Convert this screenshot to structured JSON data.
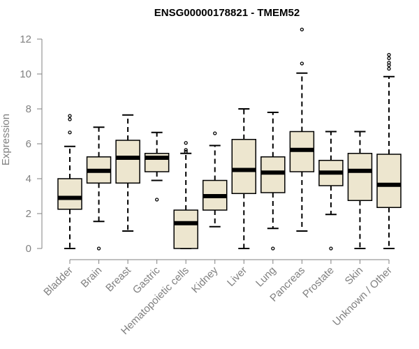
{
  "chart_data": {
    "type": "boxplot",
    "title": "ENSG00000178821 - TMEM52",
    "xlabel": "",
    "ylabel": "Expression",
    "ylim": [
      0,
      12.6
    ],
    "yticks": [
      0,
      2,
      4,
      6,
      8,
      10,
      12
    ],
    "grid": false,
    "legend": "none",
    "colors": {
      "box_fill": "#ede6cf",
      "stroke": "#000000",
      "axis": "#808080",
      "title": "#000000"
    },
    "categories": [
      "Bladder",
      "Brain",
      "Breast",
      "Gastric",
      "Hematopoietic cells",
      "Kidney",
      "Liver",
      "Lung",
      "Pancreas",
      "Prostate",
      "Skin",
      "Unknown / Other"
    ],
    "series": [
      {
        "name": "Bladder",
        "whisker_low": 0,
        "q1": 2.25,
        "median": 2.9,
        "q3": 4.0,
        "whisker_high": 5.85,
        "outliers": [
          6.65,
          7.4,
          7.6
        ]
      },
      {
        "name": "Brain",
        "whisker_low": 1.55,
        "q1": 3.75,
        "median": 4.45,
        "q3": 5.25,
        "whisker_high": 6.95,
        "outliers": [
          0
        ]
      },
      {
        "name": "Breast",
        "whisker_low": 1.0,
        "q1": 3.75,
        "median": 5.2,
        "q3": 6.2,
        "whisker_high": 7.65,
        "outliers": []
      },
      {
        "name": "Gastric",
        "whisker_low": 3.9,
        "q1": 4.4,
        "median": 5.2,
        "q3": 5.45,
        "whisker_high": 6.65,
        "outliers": [
          2.8
        ]
      },
      {
        "name": "Hematopoietic cells",
        "whisker_low": 0,
        "q1": 0,
        "median": 1.45,
        "q3": 2.2,
        "whisker_high": 5.45,
        "outliers": [
          5.55,
          5.65,
          6.05
        ]
      },
      {
        "name": "Kidney",
        "whisker_low": 1.25,
        "q1": 2.2,
        "median": 3.0,
        "q3": 3.9,
        "whisker_high": 5.9,
        "outliers": [
          6.6
        ]
      },
      {
        "name": "Liver",
        "whisker_low": 0,
        "q1": 3.15,
        "median": 4.5,
        "q3": 6.25,
        "whisker_high": 8.0,
        "outliers": []
      },
      {
        "name": "Lung",
        "whisker_low": 1.15,
        "q1": 3.2,
        "median": 4.35,
        "q3": 5.25,
        "whisker_high": 7.8,
        "outliers": [
          0
        ]
      },
      {
        "name": "Pancreas",
        "whisker_low": 1.0,
        "q1": 4.4,
        "median": 5.65,
        "q3": 6.7,
        "whisker_high": 10.05,
        "outliers": [
          10.6,
          12.55
        ]
      },
      {
        "name": "Prostate",
        "whisker_low": 1.95,
        "q1": 3.6,
        "median": 4.35,
        "q3": 5.05,
        "whisker_high": 6.7,
        "outliers": [
          0
        ]
      },
      {
        "name": "Skin",
        "whisker_low": 0,
        "q1": 2.75,
        "median": 4.45,
        "q3": 5.45,
        "whisker_high": 6.7,
        "outliers": []
      },
      {
        "name": "Unknown / Other",
        "whisker_low": 0,
        "q1": 2.35,
        "median": 3.65,
        "q3": 5.4,
        "whisker_high": 9.85,
        "outliers": [
          10.3,
          10.5,
          10.65,
          10.9,
          11.1
        ]
      }
    ]
  }
}
